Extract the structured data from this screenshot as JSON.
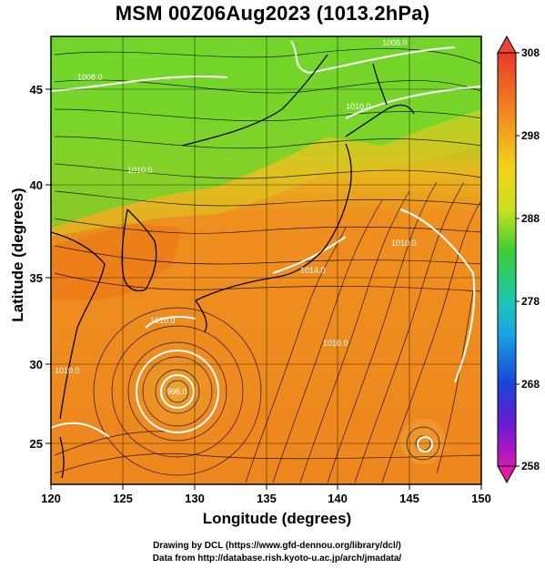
{
  "title": "MSM 00Z06Aug2023 (1013.2hPa)",
  "axes": {
    "xlabel": "Longitude (degrees)",
    "ylabel": "Latitude  (degrees)",
    "xticks": [
      "120",
      "125",
      "130",
      "135",
      "140",
      "145",
      "150"
    ],
    "yticks": [
      "25",
      "30",
      "35",
      "40",
      "45"
    ]
  },
  "colorbar": {
    "ticks": [
      "308",
      "298",
      "288",
      "278",
      "268",
      "258"
    ],
    "range": [
      258,
      308
    ]
  },
  "contour_labels": [
    "1008.0",
    "1008.0",
    "1010.0",
    "1010.0",
    "1014.0",
    "1010.0",
    "1010.0",
    "1010.0",
    "996.0",
    "1010.0"
  ],
  "credits": {
    "line1": "Drawing by DCL (https://www.gfd-dennou.org/library/dcl/)",
    "line2": "Data from http://database.rish.kyoto-u.ac.jp/arch/jmadata/"
  },
  "colors": {
    "cold": "#7ddc28",
    "warm": "#ee8a1f",
    "hot": "#ea6f15",
    "coast": "#000000",
    "contour": "#ffffff"
  }
}
